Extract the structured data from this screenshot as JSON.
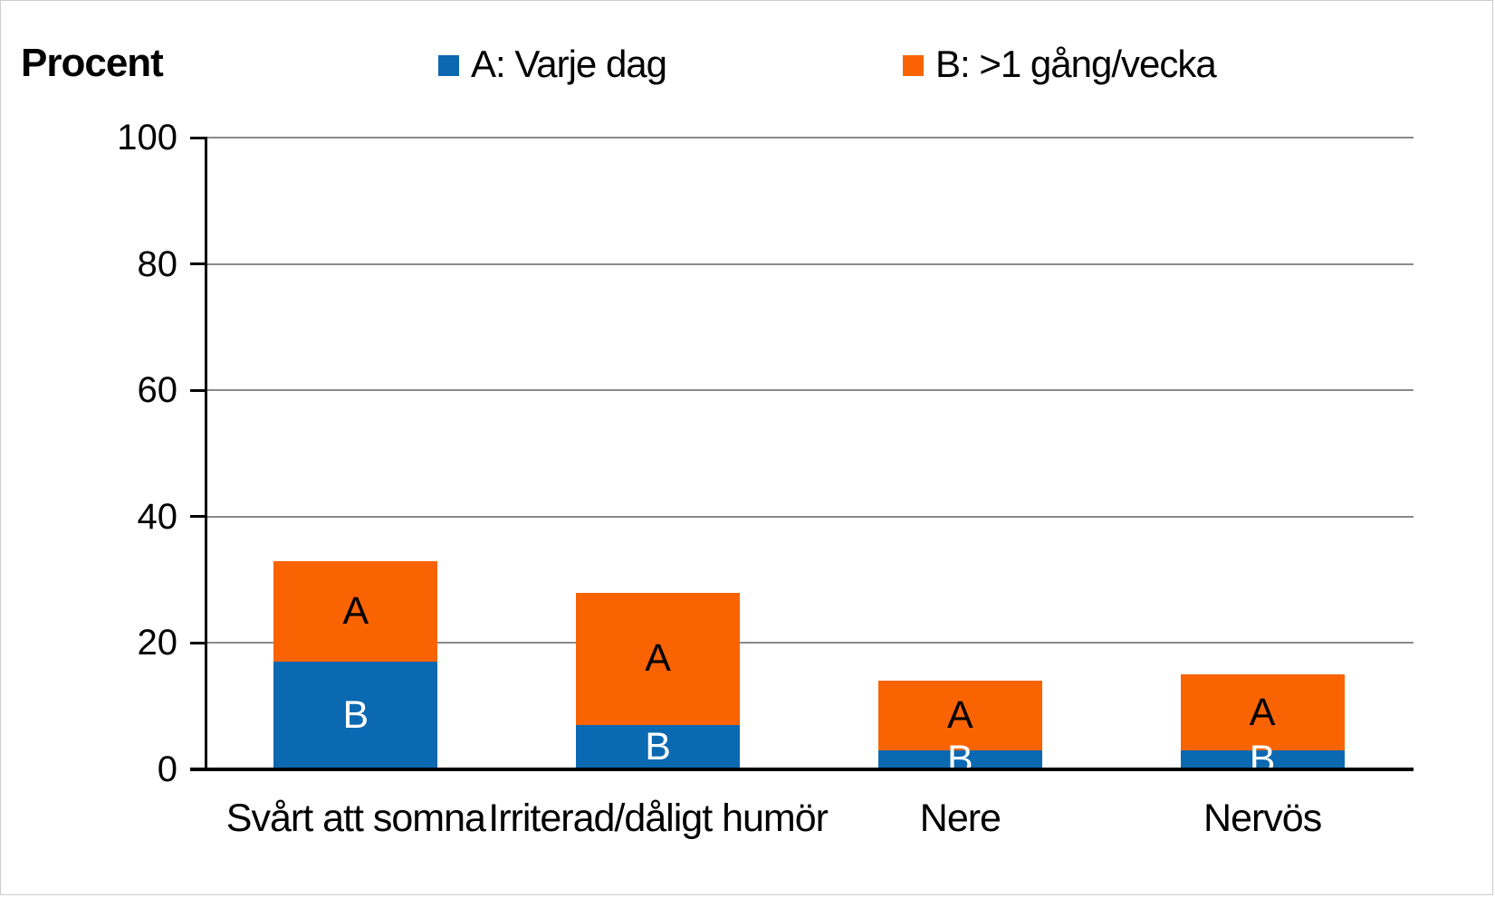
{
  "page": {
    "title": "Procent"
  },
  "legend": [
    {
      "id": "A",
      "label": "A: Varje dag",
      "color": "#0B69B1"
    },
    {
      "id": "B",
      "label": "B: >1 gång/vecka",
      "color": "#F96302"
    }
  ],
  "chart_data": {
    "type": "bar",
    "stacked": true,
    "orientation": "vertical",
    "title": "Procent",
    "ylabel": "Procent",
    "categories": [
      "Svårt att somna",
      "Irriterad/dåligt humör",
      "Nere",
      "Nervös"
    ],
    "series": [
      {
        "name": "A: Varje dag",
        "color": "#0B69B1",
        "bar_letter": "B",
        "letter_color": "#FFFFFF",
        "values": [
          17,
          7,
          3,
          3
        ]
      },
      {
        "name": "B: >1 gång/vecka",
        "color": "#F96302",
        "bar_letter": "A",
        "letter_color": "#000000",
        "values": [
          16,
          21,
          11,
          12
        ]
      }
    ],
    "totals": [
      33,
      28,
      14,
      15
    ],
    "ylim": [
      0,
      100
    ],
    "yticks": [
      0,
      20,
      40,
      60,
      80,
      100
    ],
    "grid": true,
    "legend_position": "top"
  }
}
